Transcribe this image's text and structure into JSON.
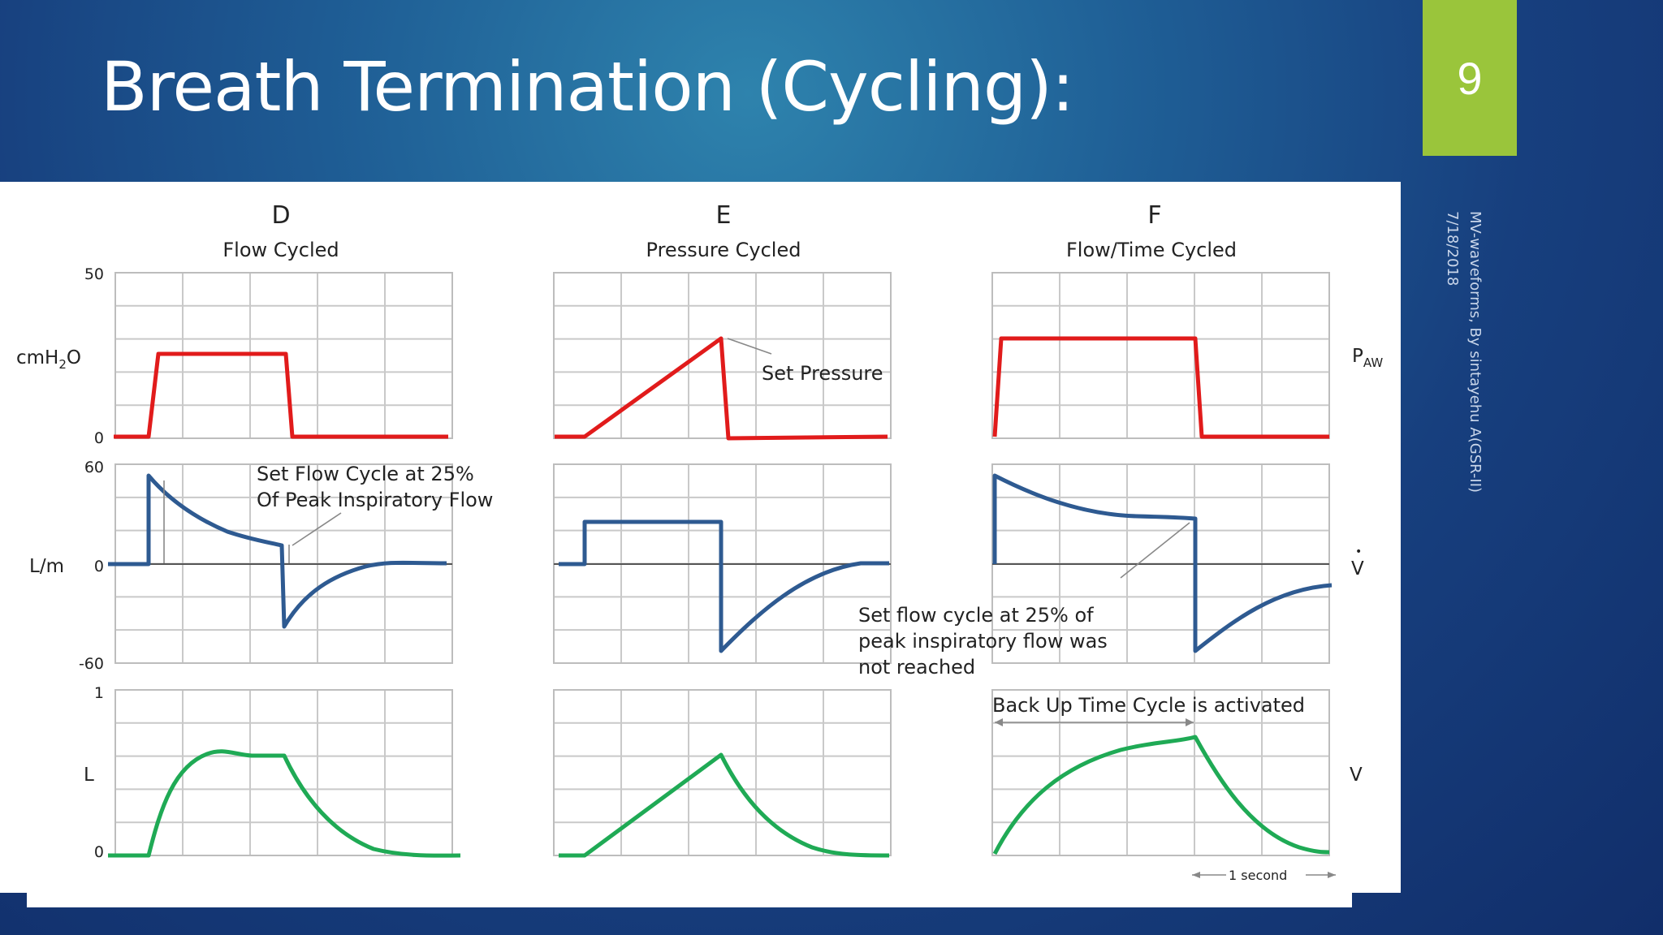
{
  "slide": {
    "title": "Breath Termination (Cycling):",
    "page_number": "9",
    "side_note": {
      "line1": "MV-waveforms, By sintayehu A(GSR-II)",
      "line2": "7/18/2018"
    },
    "colors": {
      "accent": "#9ac53b",
      "pressure": "#e11b1b",
      "flow": "#2e5a91",
      "volume": "#1faa55"
    }
  },
  "figure": {
    "panels": [
      {
        "letter": "D",
        "label": "Flow Cycled"
      },
      {
        "letter": "E",
        "label": "Pressure Cycled"
      },
      {
        "letter": "F",
        "label": "Flow/Time Cycled"
      }
    ],
    "axes": {
      "pressure": {
        "unit": "cmH",
        "unit_sub": "2",
        "unit_tail": "O",
        "ticks": [
          "50",
          "0"
        ],
        "right_label": "P",
        "right_sub": "AW"
      },
      "flow": {
        "unit": "L/m",
        "ticks": [
          "60",
          "0",
          "-60"
        ],
        "right_label": "V",
        "right_dot": "•"
      },
      "volume": {
        "unit": "L",
        "ticks": [
          "1",
          "0"
        ],
        "right_label": "V"
      }
    },
    "annotations": {
      "set_pressure": "Set Pressure",
      "flow_cycle_line1": "Set Flow Cycle at 25%",
      "flow_cycle_line2": "Of Peak Inspiratory Flow",
      "not_reached_line1": "Set flow cycle at 25% of",
      "not_reached_line2": "peak inspiratory flow was",
      "not_reached_line3": "not reached",
      "backup": "Back Up Time Cycle is activated",
      "scale": "1 second"
    }
  }
}
